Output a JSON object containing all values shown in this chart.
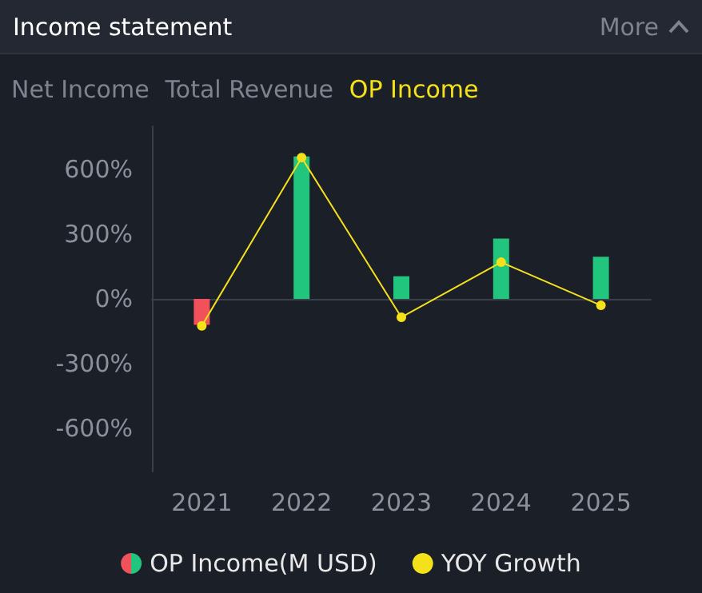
{
  "chart_data": {
    "type": "bar",
    "title": "Income statement",
    "annotations": [
      "More",
      "Net Income",
      "Total Revenue",
      "OP Income"
    ],
    "categories": [
      "2021",
      "2022",
      "2023",
      "2024",
      "2025"
    ],
    "series": [
      {
        "name": "OP Income(M USD)",
        "colors": [
          "#f0515a",
          "#22c57e",
          "#22c57e",
          "#22c57e",
          "#22c57e"
        ],
        "values": [
          -120,
          660,
          105,
          280,
          195
        ]
      },
      {
        "name": "YOY Growth",
        "type": "line",
        "color": "#f5e11a",
        "values": [
          -125,
          655,
          -85,
          170,
          -30
        ]
      }
    ],
    "ylim": [
      -800,
      800
    ],
    "yticks": [
      {
        "value": -600,
        "label": "-600%"
      },
      {
        "value": -300,
        "label": "-300%"
      },
      {
        "value": 0,
        "label": "0%"
      },
      {
        "value": 300,
        "label": "300%"
      },
      {
        "value": 600,
        "label": "600%"
      }
    ],
    "legend": "bottom",
    "marker": "circle",
    "line_style": "solid"
  }
}
